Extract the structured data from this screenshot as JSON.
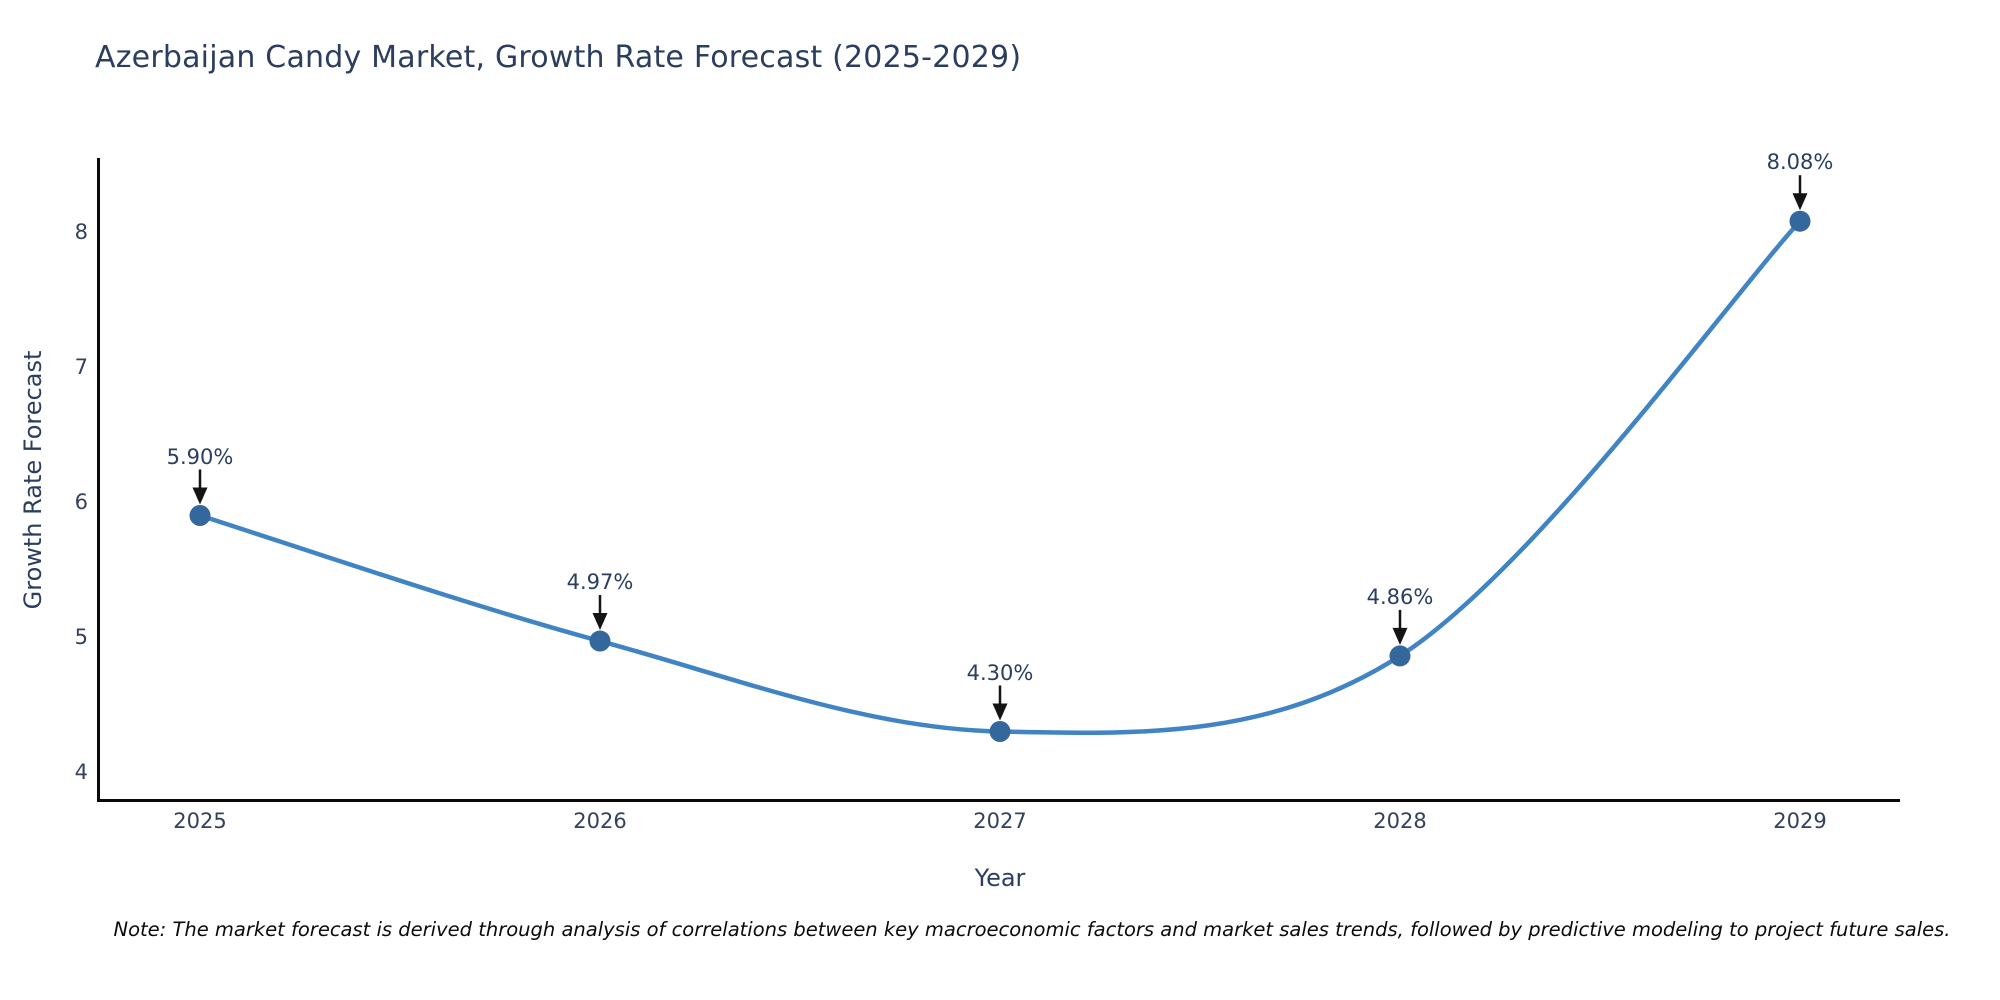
{
  "title": "Azerbaijan Candy Market, Growth Rate Forecast (2025-2029)",
  "note": "Note: The market forecast is derived through analysis of correlations between key macroeconomic factors and market sales trends, followed by predictive modeling to project future sales.",
  "chart_data": {
    "type": "line",
    "line_shape": "spline",
    "title": "Azerbaijan Candy Market, Growth Rate Forecast (2025-2029)",
    "xlabel": "Year",
    "ylabel": "Growth Rate Forecast",
    "x": [
      2025,
      2026,
      2027,
      2028,
      2029
    ],
    "y": [
      5.9,
      4.97,
      4.3,
      4.86,
      8.08
    ],
    "point_labels": [
      "5.90%",
      "4.97%",
      "4.30%",
      "4.86%",
      "8.08%"
    ],
    "yticks": [
      4,
      5,
      6,
      7,
      8
    ],
    "xticks": [
      "2025",
      "2026",
      "2027",
      "2028",
      "2029"
    ],
    "ylim": [
      3.79,
      8.55
    ],
    "grid": false,
    "legend": "none",
    "markers": true,
    "annotations_arrow": "down",
    "colors": {
      "line": "#4184c4",
      "marker": "#34689c",
      "axis_line": "#0a0a0a",
      "tick_text": "#33415c",
      "label_text": "#2b3e5f",
      "arrow": "#141414"
    }
  }
}
